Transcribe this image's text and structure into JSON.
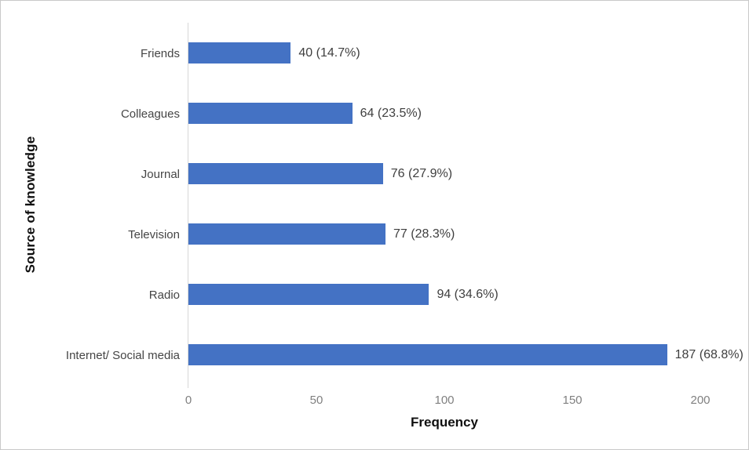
{
  "chart_data": {
    "type": "bar",
    "orientation": "horizontal",
    "title": "",
    "xlabel": "Frequency",
    "ylabel": "Source of knowledge",
    "categories": [
      "Friends",
      "Colleagues",
      "Journal",
      "Television",
      "Radio",
      "Internet/ Social media"
    ],
    "values": [
      40,
      64,
      76,
      77,
      94,
      187
    ],
    "percentages": [
      14.7,
      23.5,
      27.9,
      28.3,
      34.6,
      68.8
    ],
    "data_labels": [
      "40 (14.7%)",
      "64 (23.5%)",
      "76 (27.9%)",
      "77 (28.3%)",
      "94 (34.6%)",
      "187 (68.8%)"
    ],
    "xlim": [
      0,
      200
    ],
    "xticks": [
      0,
      50,
      100,
      150,
      200
    ],
    "grid": false,
    "legend": false,
    "bar_color": "#4472c4",
    "axis_line_color": "#d6d6d6",
    "tick_label_color": "#808080",
    "category_label_color": "#454545",
    "data_label_color": "#3f3f3f"
  }
}
